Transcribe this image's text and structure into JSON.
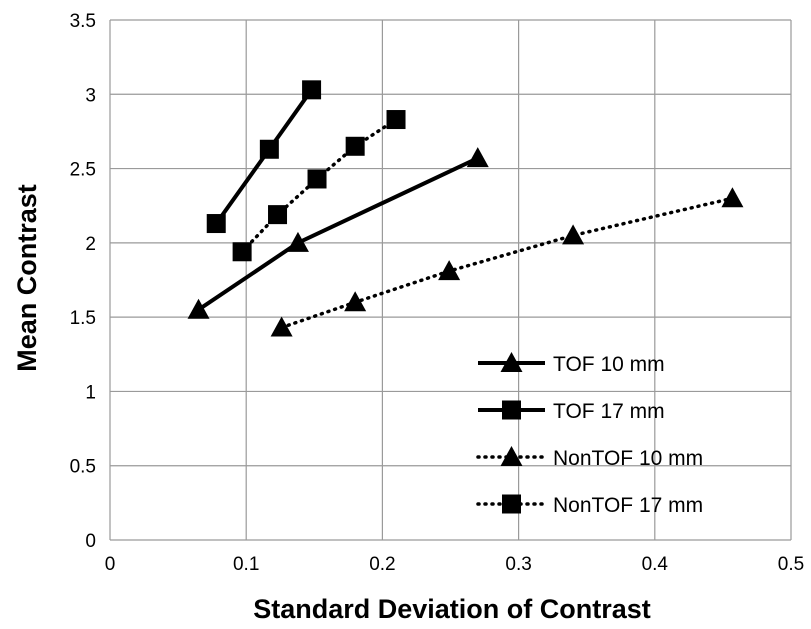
{
  "chart_data": {
    "type": "line",
    "title": "",
    "xlabel": "Standard Deviation of Contrast",
    "ylabel": "Mean Contrast",
    "xlim": [
      0,
      0.5
    ],
    "ylim": [
      0,
      3.5
    ],
    "xticks": [
      0,
      0.1,
      0.2,
      0.3,
      0.4,
      0.5
    ],
    "xtick_labels": [
      "0",
      "0.1",
      "0.2",
      "0.3",
      "0.4",
      "0.5"
    ],
    "yticks": [
      0,
      0.5,
      1,
      1.5,
      2,
      2.5,
      3,
      3.5
    ],
    "ytick_labels": [
      "0",
      "0.5",
      "1",
      "1.5",
      "2",
      "2.5",
      "3",
      "3.5"
    ],
    "grid": true,
    "legend_position": "bottom-right",
    "series": [
      {
        "name": "TOF 10 mm",
        "line": "solid",
        "marker": "triangle",
        "points": [
          [
            0.065,
            1.55
          ],
          [
            0.138,
            2.0
          ],
          [
            0.27,
            2.57
          ]
        ]
      },
      {
        "name": "TOF 17 mm",
        "line": "solid",
        "marker": "square",
        "points": [
          [
            0.078,
            2.13
          ],
          [
            0.117,
            2.63
          ],
          [
            0.148,
            3.03
          ]
        ]
      },
      {
        "name": "NonTOF 10 mm",
        "line": "dotted",
        "marker": "triangle",
        "points": [
          [
            0.126,
            1.43
          ],
          [
            0.18,
            1.6
          ],
          [
            0.249,
            1.81
          ],
          [
            0.34,
            2.05
          ],
          [
            0.457,
            2.3
          ]
        ]
      },
      {
        "name": "NonTOF 17 mm",
        "line": "dotted",
        "marker": "square",
        "points": [
          [
            0.097,
            1.94
          ],
          [
            0.123,
            2.19
          ],
          [
            0.152,
            2.43
          ],
          [
            0.18,
            2.65
          ],
          [
            0.21,
            2.83
          ]
        ]
      }
    ]
  }
}
